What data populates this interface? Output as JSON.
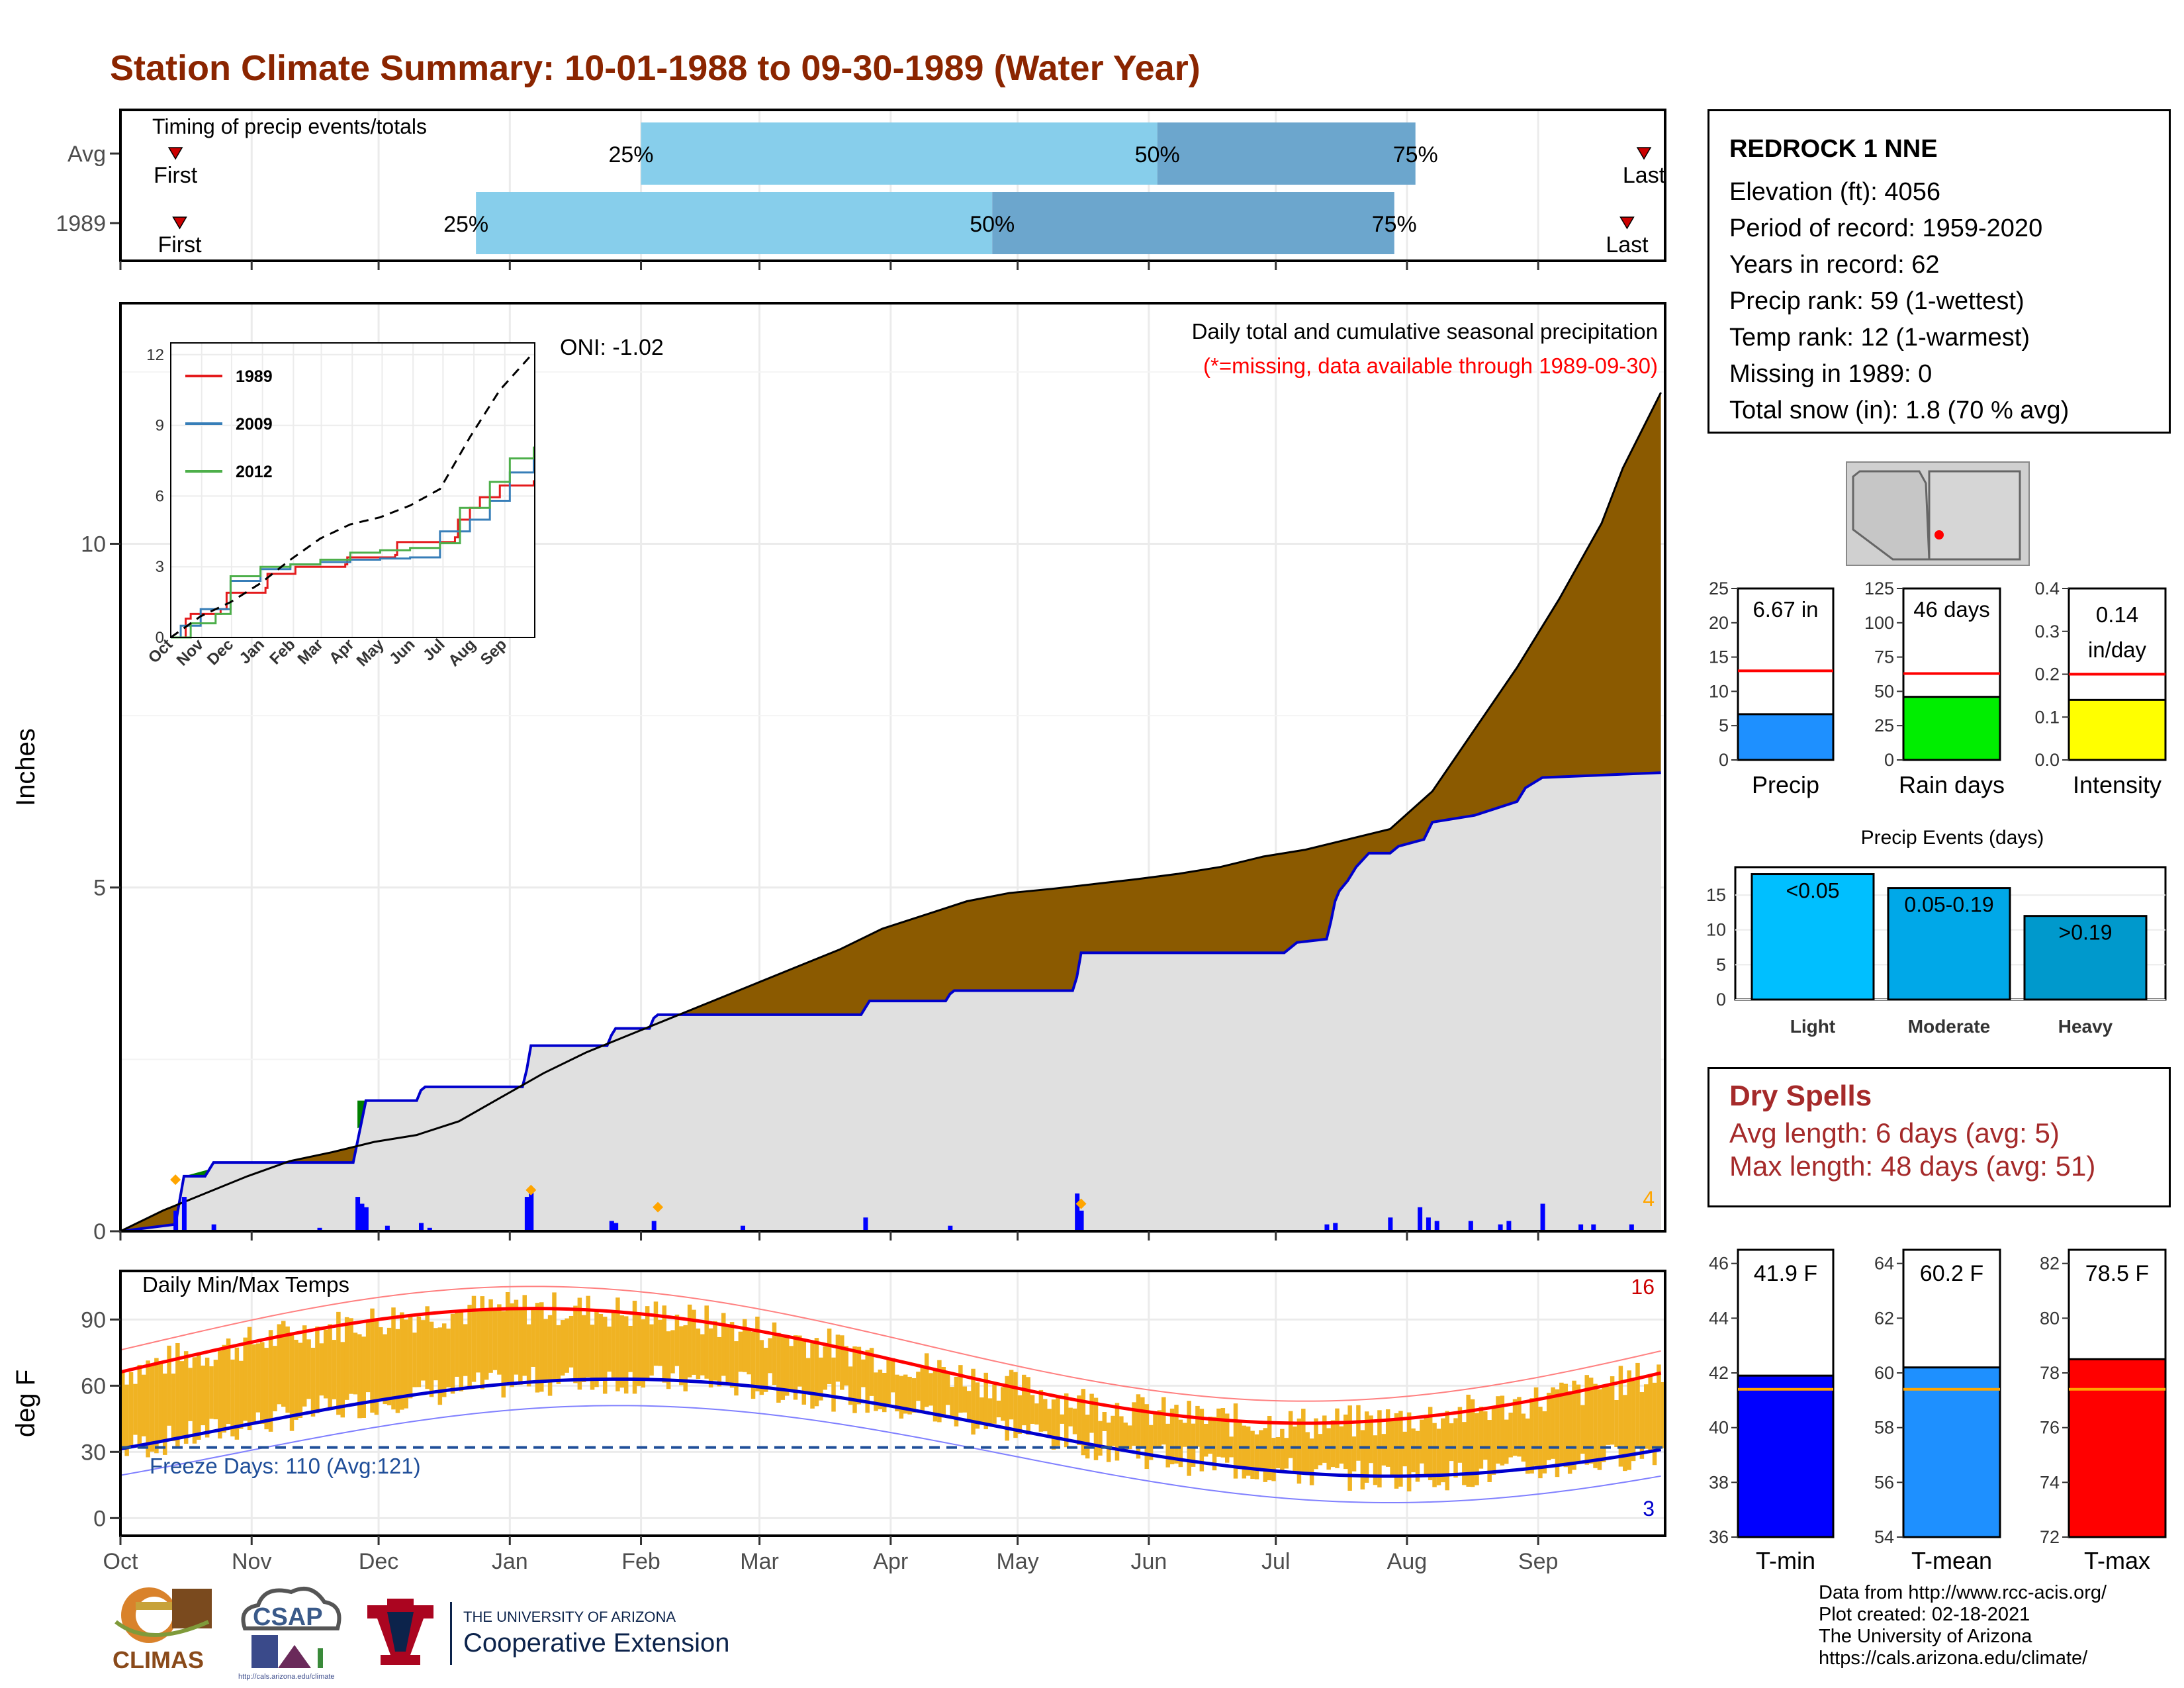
{
  "title": "Station Climate Summary: 10-01-1988 to 09-30-1989 (Water Year)",
  "months": [
    "Oct",
    "Nov",
    "Dec",
    "Jan",
    "Feb",
    "Mar",
    "Apr",
    "May",
    "Jun",
    "Jul",
    "Aug",
    "Sep"
  ],
  "station": {
    "name": "REDROCK 1 NNE",
    "lines": [
      "Elevation (ft): 4056",
      "Period of record: 1959-2020",
      "Years in record: 62",
      "Precip rank: 59 (1-wettest)",
      "Temp rank: 12 (1-warmest)",
      "Missing in 1989: 0",
      "Total snow (in): 1.8 (70 % avg)"
    ]
  },
  "timing": {
    "label": "Timing of precip events/totals",
    "rows": [
      {
        "name": "Avg",
        "first": "2019-10-14",
        "p25": "2020-02-01",
        "p50": "2020-06-02",
        "p75": "2020-08-02",
        "last": "2020-09-25"
      },
      {
        "name": "1989",
        "first": "2019-10-15",
        "p25": "2019-12-24",
        "p50": "2020-04-24",
        "p75": "2020-07-28",
        "last": "2020-09-21"
      }
    ],
    "pct_labels": [
      "25%",
      "50%",
      "75%"
    ],
    "first_label": "First",
    "last_label": "Last",
    "colors": {
      "q1": "#87ceeb",
      "q2": "#6ca6cd",
      "marker": "#cc0000"
    }
  },
  "precip": {
    "ylabel": "Inches",
    "ticks": [
      0,
      5,
      10
    ],
    "ylim": [
      0,
      13.5
    ],
    "oni": "ONI: -1.02",
    "note1": "Daily total and cumulative seasonal precipitation",
    "note2": "(*=missing, data available through 1989-09-30)",
    "extreme_count": "4",
    "avg_cumulative": [
      [
        0,
        0
      ],
      [
        10,
        0.3
      ],
      [
        20,
        0.55
      ],
      [
        30,
        0.8
      ],
      [
        40,
        1.02
      ],
      [
        50,
        1.15
      ],
      [
        60,
        1.3
      ],
      [
        70,
        1.4
      ],
      [
        80,
        1.6
      ],
      [
        90,
        1.95
      ],
      [
        100,
        2.3
      ],
      [
        110,
        2.6
      ],
      [
        120,
        2.85
      ],
      [
        130,
        3.1
      ],
      [
        140,
        3.35
      ],
      [
        150,
        3.6
      ],
      [
        160,
        3.85
      ],
      [
        170,
        4.1
      ],
      [
        180,
        4.4
      ],
      [
        190,
        4.6
      ],
      [
        200,
        4.8
      ],
      [
        210,
        4.92
      ],
      [
        220,
        4.98
      ],
      [
        230,
        5.05
      ],
      [
        240,
        5.12
      ],
      [
        250,
        5.2
      ],
      [
        260,
        5.3
      ],
      [
        270,
        5.45
      ],
      [
        280,
        5.55
      ],
      [
        290,
        5.7
      ],
      [
        300,
        5.85
      ],
      [
        310,
        6.4
      ],
      [
        320,
        7.3
      ],
      [
        330,
        8.2
      ],
      [
        340,
        9.2
      ],
      [
        350,
        10.3
      ],
      [
        355,
        11.1
      ],
      [
        364,
        12.2
      ]
    ],
    "obs_cumulative": [
      [
        0,
        0
      ],
      [
        13,
        0.1
      ],
      [
        15,
        0.8
      ],
      [
        20,
        0.8
      ],
      [
        21,
        0.9
      ],
      [
        22,
        1.0
      ],
      [
        55,
        1.0
      ],
      [
        56,
        1.3
      ],
      [
        57,
        1.6
      ],
      [
        58,
        1.9
      ],
      [
        70,
        1.9
      ],
      [
        71,
        2.05
      ],
      [
        72,
        2.1
      ],
      [
        95,
        2.1
      ],
      [
        96,
        2.35
      ],
      [
        97,
        2.7
      ],
      [
        115,
        2.7
      ],
      [
        116,
        2.85
      ],
      [
        117,
        2.95
      ],
      [
        125,
        2.95
      ],
      [
        126,
        3.1
      ],
      [
        127,
        3.15
      ],
      [
        175,
        3.15
      ],
      [
        176,
        3.25
      ],
      [
        177,
        3.35
      ],
      [
        195,
        3.35
      ],
      [
        196,
        3.45
      ],
      [
        197,
        3.5
      ],
      [
        225,
        3.5
      ],
      [
        226,
        3.7
      ],
      [
        227,
        4.05
      ],
      [
        275,
        4.05
      ],
      [
        276,
        4.1
      ],
      [
        278,
        4.2
      ],
      [
        285,
        4.25
      ],
      [
        286,
        4.5
      ],
      [
        287,
        4.8
      ],
      [
        288,
        4.95
      ],
      [
        290,
        5.1
      ],
      [
        292,
        5.3
      ],
      [
        295,
        5.5
      ],
      [
        300,
        5.5
      ],
      [
        302,
        5.6
      ],
      [
        308,
        5.7
      ],
      [
        310,
        5.95
      ],
      [
        320,
        6.05
      ],
      [
        330,
        6.25
      ],
      [
        332,
        6.45
      ],
      [
        336,
        6.6
      ],
      [
        364,
        6.67
      ]
    ],
    "daily_bars": [
      [
        13,
        0.3
      ],
      [
        15,
        0.5
      ],
      [
        22,
        0.1
      ],
      [
        47,
        0.05
      ],
      [
        56,
        0.5
      ],
      [
        57,
        0.4
      ],
      [
        58,
        0.35
      ],
      [
        63,
        0.08
      ],
      [
        71,
        0.12
      ],
      [
        73,
        0.05
      ],
      [
        96,
        0.5
      ],
      [
        97,
        0.6
      ],
      [
        116,
        0.15
      ],
      [
        117,
        0.12
      ],
      [
        126,
        0.15
      ],
      [
        147,
        0.08
      ],
      [
        176,
        0.2
      ],
      [
        196,
        0.08
      ],
      [
        226,
        0.55
      ],
      [
        227,
        0.3
      ],
      [
        285,
        0.1
      ],
      [
        287,
        0.12
      ],
      [
        300,
        0.2
      ],
      [
        307,
        0.35
      ],
      [
        309,
        0.2
      ],
      [
        311,
        0.15
      ],
      [
        319,
        0.15
      ],
      [
        326,
        0.1
      ],
      [
        328,
        0.15
      ],
      [
        336,
        0.4
      ],
      [
        345,
        0.1
      ],
      [
        348,
        0.1
      ],
      [
        357,
        0.1
      ]
    ],
    "extreme_points": [
      [
        13,
        0.75
      ],
      [
        97,
        0.6
      ],
      [
        127,
        0.35
      ],
      [
        227,
        0.4
      ]
    ],
    "colors": {
      "avg_fill": "#8b5a00",
      "obs_fill": "#e0e0e0",
      "obs_line": "#0000cc",
      "wet_fill": "#008000",
      "bars": "#0000ff",
      "extreme": "#ffa500",
      "note2": "#ff0000"
    }
  },
  "inset": {
    "x_labels": [
      "Oct",
      "Nov",
      "Dec",
      "Jan",
      "Feb",
      "Mar",
      "Apr",
      "May",
      "Jun",
      "Jul",
      "Aug",
      "Sep"
    ],
    "y_ticks": [
      0,
      3,
      6,
      9,
      12
    ],
    "legend": [
      {
        "name": "1989",
        "color": "#e41a1c"
      },
      {
        "name": "2009",
        "color": "#377eb8"
      },
      {
        "name": "2012",
        "color": "#4daf4a"
      }
    ],
    "avg_line": [
      [
        0,
        0
      ],
      [
        30,
        0.9
      ],
      [
        60,
        1.5
      ],
      [
        90,
        2.3
      ],
      [
        120,
        3.3
      ],
      [
        150,
        4.2
      ],
      [
        180,
        4.8
      ],
      [
        210,
        5.1
      ],
      [
        240,
        5.6
      ],
      [
        270,
        6.3
      ],
      [
        300,
        8.5
      ],
      [
        330,
        10.5
      ],
      [
        364,
        12.1
      ]
    ],
    "series": [
      [
        [
          0,
          0
        ],
        [
          15,
          0.8
        ],
        [
          20,
          1.0
        ],
        [
          50,
          1.2
        ],
        [
          56,
          1.9
        ],
        [
          95,
          2.1
        ],
        [
          97,
          2.7
        ],
        [
          125,
          3.0
        ],
        [
          175,
          3.1
        ],
        [
          177,
          3.4
        ],
        [
          225,
          3.5
        ],
        [
          227,
          4.05
        ],
        [
          285,
          4.25
        ],
        [
          288,
          5.0
        ],
        [
          300,
          5.5
        ],
        [
          310,
          5.95
        ],
        [
          330,
          6.45
        ],
        [
          364,
          6.67
        ]
      ],
      [
        [
          0,
          0
        ],
        [
          10,
          0.5
        ],
        [
          30,
          1.2
        ],
        [
          60,
          2.4
        ],
        [
          90,
          2.9
        ],
        [
          120,
          3.1
        ],
        [
          150,
          3.2
        ],
        [
          180,
          3.3
        ],
        [
          210,
          3.35
        ],
        [
          240,
          3.4
        ],
        [
          270,
          4.5
        ],
        [
          300,
          5.0
        ],
        [
          320,
          5.8
        ],
        [
          340,
          7.0
        ],
        [
          364,
          8.0
        ]
      ],
      [
        [
          0,
          0
        ],
        [
          20,
          0.6
        ],
        [
          45,
          1.0
        ],
        [
          60,
          2.6
        ],
        [
          90,
          3.0
        ],
        [
          120,
          3.1
        ],
        [
          150,
          3.3
        ],
        [
          180,
          3.6
        ],
        [
          210,
          3.7
        ],
        [
          240,
          3.8
        ],
        [
          270,
          4.0
        ],
        [
          290,
          5.5
        ],
        [
          320,
          6.6
        ],
        [
          340,
          7.6
        ],
        [
          364,
          8.1
        ]
      ]
    ]
  },
  "rank_bars": [
    {
      "name": "Precip",
      "value_label": "6.67 in",
      "value": 6.67,
      "avg": 13,
      "ylim": [
        0,
        25
      ],
      "ticks": [
        "0",
        "5",
        "10",
        "15",
        "20",
        "25"
      ],
      "color": "#1e90ff"
    },
    {
      "name": "Rain days",
      "value_label": "46 days",
      "value": 46,
      "avg": 63,
      "ylim": [
        0,
        125
      ],
      "ticks": [
        "0",
        "25",
        "50",
        "75",
        "100",
        "125"
      ],
      "color": "#00ee00"
    },
    {
      "name": "Intensity",
      "value_label": "0.14 in/day",
      "value": 0.14,
      "avg": 0.2,
      "ylim": [
        0,
        0.4
      ],
      "ticks": [
        "0.0",
        "0.1",
        "0.2",
        "0.3",
        "0.4"
      ],
      "color": "#ffff00"
    }
  ],
  "precip_events": {
    "title": "Precip Events (days)",
    "ticks": [
      "0",
      "5",
      "10",
      "15"
    ],
    "ylim": [
      0,
      19
    ],
    "bars": [
      {
        "cat": "Light",
        "label": "<0.05",
        "value": 18,
        "color": "#00bfff"
      },
      {
        "cat": "Moderate",
        "label": "0.05-0.19",
        "value": 16,
        "color": "#00a8e8"
      },
      {
        "cat": "Heavy",
        "label": ">0.19",
        "value": 12,
        "color": "#0099cc"
      }
    ]
  },
  "dry_spells": {
    "title": "Dry Spells",
    "avg_line": "Avg length: 6 days (avg: 5)",
    "max_line": "Max length: 48 days (avg: 51)"
  },
  "temps": {
    "title": "Daily Min/Max Temps",
    "ylabel": "deg F",
    "ticks": [
      0,
      30,
      60,
      90
    ],
    "ylim": [
      -8,
      112
    ],
    "freeze": "Freeze Days: 110 (Avg:121)",
    "high_count": "16",
    "low_count": "3",
    "colors": {
      "bars": "#f0b323",
      "max_line": "#ff0000",
      "min_line": "#0000cc",
      "rec_max": "#ff8080",
      "rec_min": "#8080ff",
      "freeze_line": "#1f4e99"
    }
  },
  "temp_bars": [
    {
      "name": "T-min",
      "value_label": "41.9 F",
      "value": 41.9,
      "avg": 41.4,
      "ylim": [
        36,
        46.5
      ],
      "ticks": [
        "36",
        "38",
        "40",
        "42",
        "44",
        "46"
      ],
      "color": "#0000ff"
    },
    {
      "name": "T-mean",
      "value_label": "60.2 F",
      "value": 60.2,
      "avg": 59.4,
      "ylim": [
        54,
        64.5
      ],
      "ticks": [
        "54",
        "56",
        "58",
        "60",
        "62",
        "64"
      ],
      "color": "#1e90ff"
    },
    {
      "name": "T-max",
      "value_label": "78.5 F",
      "value": 78.5,
      "avg": 77.4,
      "ylim": [
        72,
        82.5
      ],
      "ticks": [
        "72",
        "74",
        "76",
        "78",
        "80",
        "82"
      ],
      "color": "#ff0000"
    }
  ],
  "credits": [
    "Data from http://www.rcc-acis.org/",
    "Plot created: 02-18-2021",
    "The University of Arizona",
    "https://cals.arizona.edu/climate/"
  ],
  "logos": {
    "climas": "CLIMAS",
    "csap": "CSAP",
    "csap_url": "http://cals.arizona.edu/climate",
    "ua_small": "THE UNIVERSITY OF ARIZONA",
    "ua_large": "Cooperative Extension"
  }
}
